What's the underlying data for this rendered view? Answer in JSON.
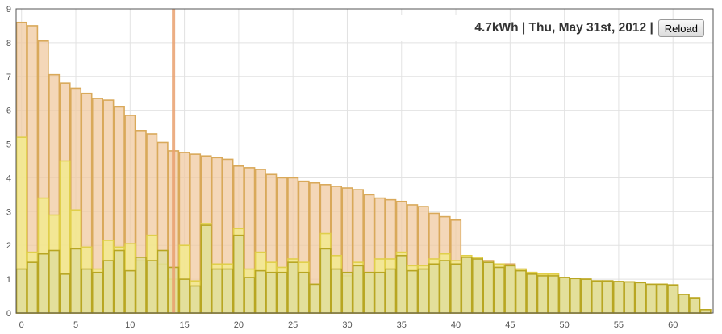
{
  "chart_data": {
    "type": "bar",
    "x": [
      0,
      1,
      2,
      3,
      4,
      5,
      6,
      7,
      8,
      9,
      10,
      11,
      12,
      13,
      14,
      15,
      16,
      17,
      18,
      19,
      20,
      21,
      22,
      23,
      24,
      25,
      26,
      27,
      28,
      29,
      30,
      31,
      32,
      33,
      34,
      35,
      36,
      37,
      38,
      39,
      40,
      41,
      42,
      43,
      44,
      45,
      46,
      47,
      48,
      49,
      50,
      51,
      52,
      53,
      54,
      55,
      56,
      57,
      58,
      59,
      60,
      61,
      62,
      63
    ],
    "series": [
      {
        "values": [
          8.6,
          8.5,
          8.05,
          7.05,
          6.8,
          6.65,
          6.5,
          6.35,
          6.3,
          6.1,
          5.85,
          5.4,
          5.3,
          5.05,
          4.8,
          4.75,
          4.7,
          4.65,
          4.6,
          4.55,
          4.35,
          4.3,
          4.25,
          4.1,
          4.0,
          4.0,
          3.9,
          3.85,
          3.8,
          3.75,
          3.7,
          3.65,
          3.5,
          3.4,
          3.35,
          3.3,
          3.2,
          3.15,
          2.95,
          2.85,
          2.75,
          1.7,
          1.65,
          1.55,
          1.45,
          1.45,
          1.3,
          1.2,
          1.15,
          1.15,
          1.05,
          1.02,
          1.0,
          0.95,
          0.95,
          0.93,
          0.92,
          0.9,
          0.85,
          0.85,
          0.83,
          0.55,
          0.45,
          0.1
        ],
        "color": "#f0c9a0"
      },
      {
        "values": [
          5.2,
          1.8,
          3.4,
          2.9,
          4.5,
          3.05,
          1.95,
          1.3,
          2.15,
          1.95,
          2.05,
          1.55,
          2.3,
          1.45,
          1.0,
          2.0,
          0.95,
          2.65,
          1.45,
          1.45,
          2.5,
          1.3,
          1.8,
          1.5,
          1.35,
          1.6,
          1.5,
          0.85,
          2.35,
          1.7,
          1.1,
          1.5,
          1.2,
          1.6,
          1.6,
          1.8,
          1.4,
          1.4,
          1.6,
          1.75,
          1.55,
          1.7,
          1.65,
          1.5,
          1.45,
          1.4,
          1.3,
          1.2,
          1.15,
          1.15,
          1.05,
          1.02,
          1.0,
          0.95,
          0.95,
          0.93,
          0.92,
          0.9,
          0.85,
          0.85,
          0.83,
          0.55,
          0.45,
          0.1
        ],
        "color": "#f2eb8c"
      },
      {
        "values": [
          1.3,
          1.5,
          1.75,
          1.85,
          1.15,
          1.9,
          1.3,
          1.2,
          1.55,
          1.85,
          1.25,
          1.65,
          1.55,
          1.85,
          1.35,
          1.0,
          0.8,
          2.6,
          1.3,
          1.3,
          2.3,
          1.05,
          1.25,
          1.2,
          1.2,
          1.5,
          1.2,
          0.85,
          1.9,
          1.3,
          1.2,
          1.4,
          1.2,
          1.2,
          1.3,
          1.7,
          1.25,
          1.3,
          1.45,
          1.55,
          1.45,
          1.65,
          1.6,
          1.5,
          1.35,
          1.4,
          1.25,
          1.15,
          1.1,
          1.1,
          1.05,
          1.02,
          1.0,
          0.95,
          0.95,
          0.93,
          0.92,
          0.9,
          0.85,
          0.85,
          0.83,
          0.55,
          0.45,
          0.1
        ],
        "color": "#dedd9c"
      }
    ],
    "marker_x": 14,
    "xlim": [
      -0.5,
      63.7
    ],
    "ylim": [
      0,
      9
    ],
    "xticks": [
      0,
      5,
      10,
      15,
      20,
      25,
      30,
      35,
      40,
      45,
      50,
      55,
      60
    ],
    "yticks": [
      0,
      1,
      2,
      3,
      4,
      5,
      6,
      7,
      8,
      9
    ],
    "grid": true,
    "title": "",
    "xlabel": "",
    "ylabel": ""
  },
  "header": {
    "status": "4.7kWh | Thu, May 31st, 2012 |",
    "reload_label": "Reload"
  }
}
